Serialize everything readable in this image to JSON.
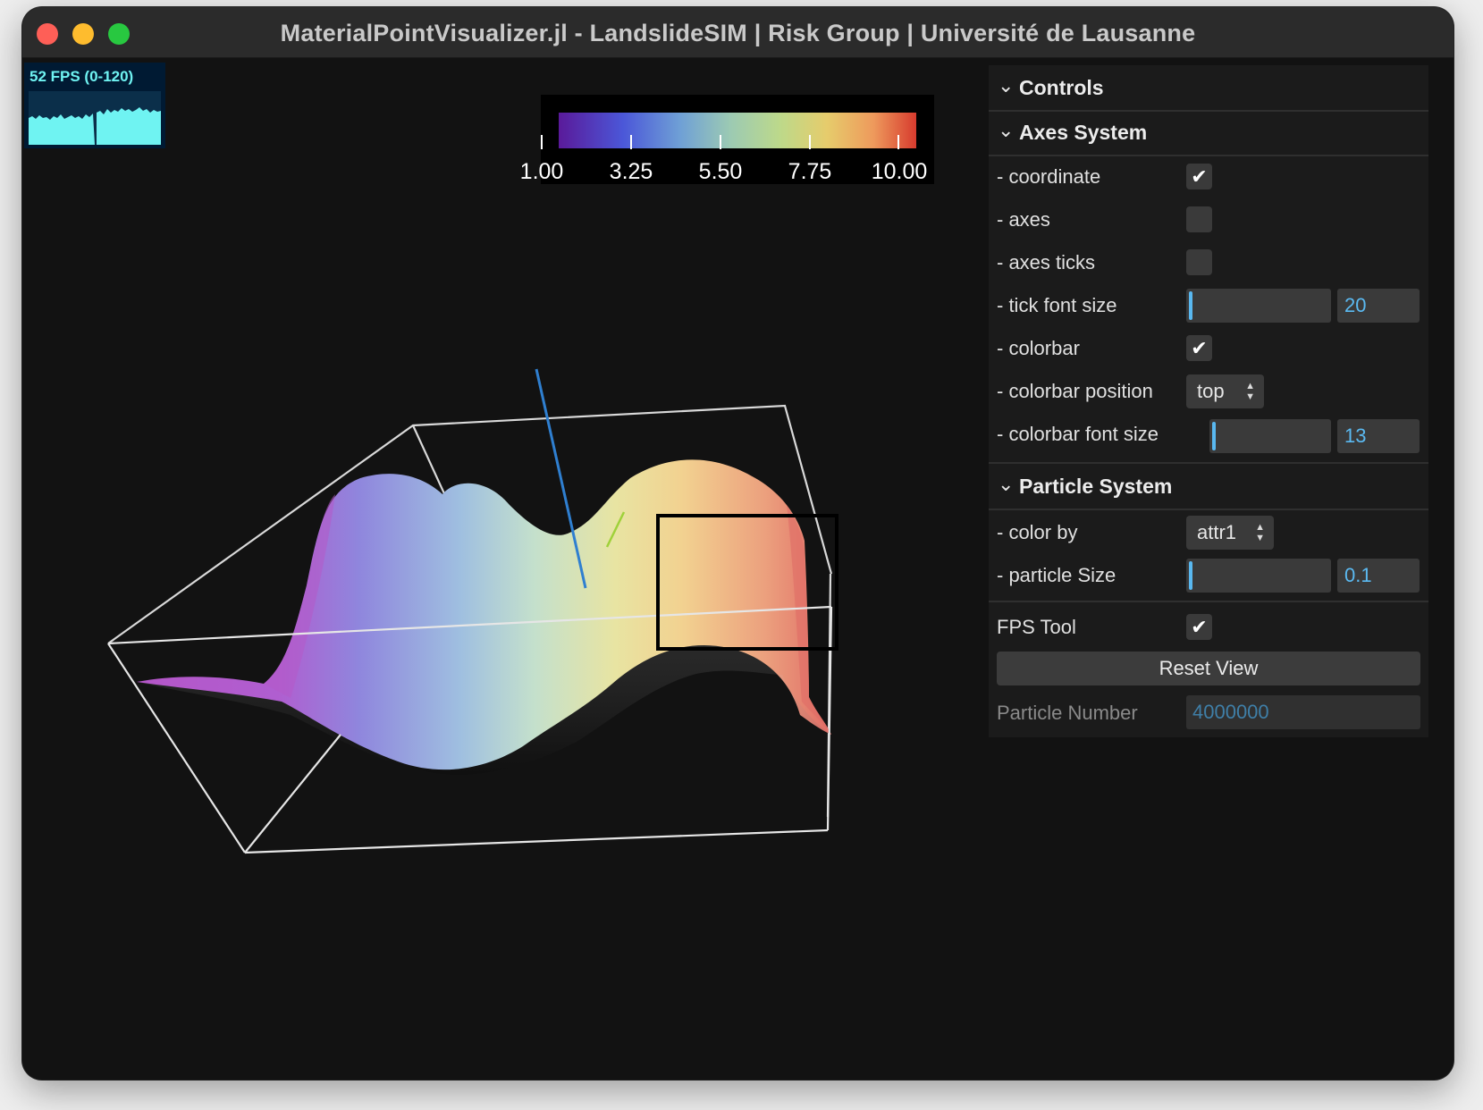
{
  "window": {
    "title": "MaterialPointVisualizer.jl - LandslideSIM | Risk Group | Université de Lausanne"
  },
  "fps": {
    "label": "52 FPS (0-120)",
    "color": "#6ff3f2"
  },
  "colorbar": {
    "ticks": [
      "1.00",
      "3.25",
      "5.50",
      "7.75",
      "10.00"
    ],
    "colormap": "rainbow"
  },
  "controls": {
    "title": "Controls",
    "axes_system": {
      "title": "Axes System",
      "coordinate_label": "- coordinate",
      "coordinate_checked": true,
      "axes_label": "- axes",
      "axes_checked": false,
      "axes_ticks_label": "- axes ticks",
      "axes_ticks_checked": false,
      "tick_font_size_label": "- tick font size",
      "tick_font_size_value": "20",
      "colorbar_label": "- colorbar",
      "colorbar_checked": true,
      "colorbar_position_label": "- colorbar position",
      "colorbar_position_value": "top",
      "colorbar_font_size_label": "- colorbar font size",
      "colorbar_font_size_value": "13"
    },
    "particle_system": {
      "title": "Particle System",
      "color_by_label": "- color by",
      "color_by_value": "attr1",
      "particle_size_label": "- particle Size",
      "particle_size_value": "0.1"
    },
    "fps_tool_label": "FPS Tool",
    "fps_tool_checked": true,
    "reset_view_label": "Reset View",
    "particle_number_label": "Particle Number",
    "particle_number_value": "4000000"
  },
  "icons": {
    "chevron": "chevron-down-icon",
    "check": "checkmark-icon",
    "updown": "updown-arrows-icon"
  },
  "check_glyph": "✔"
}
